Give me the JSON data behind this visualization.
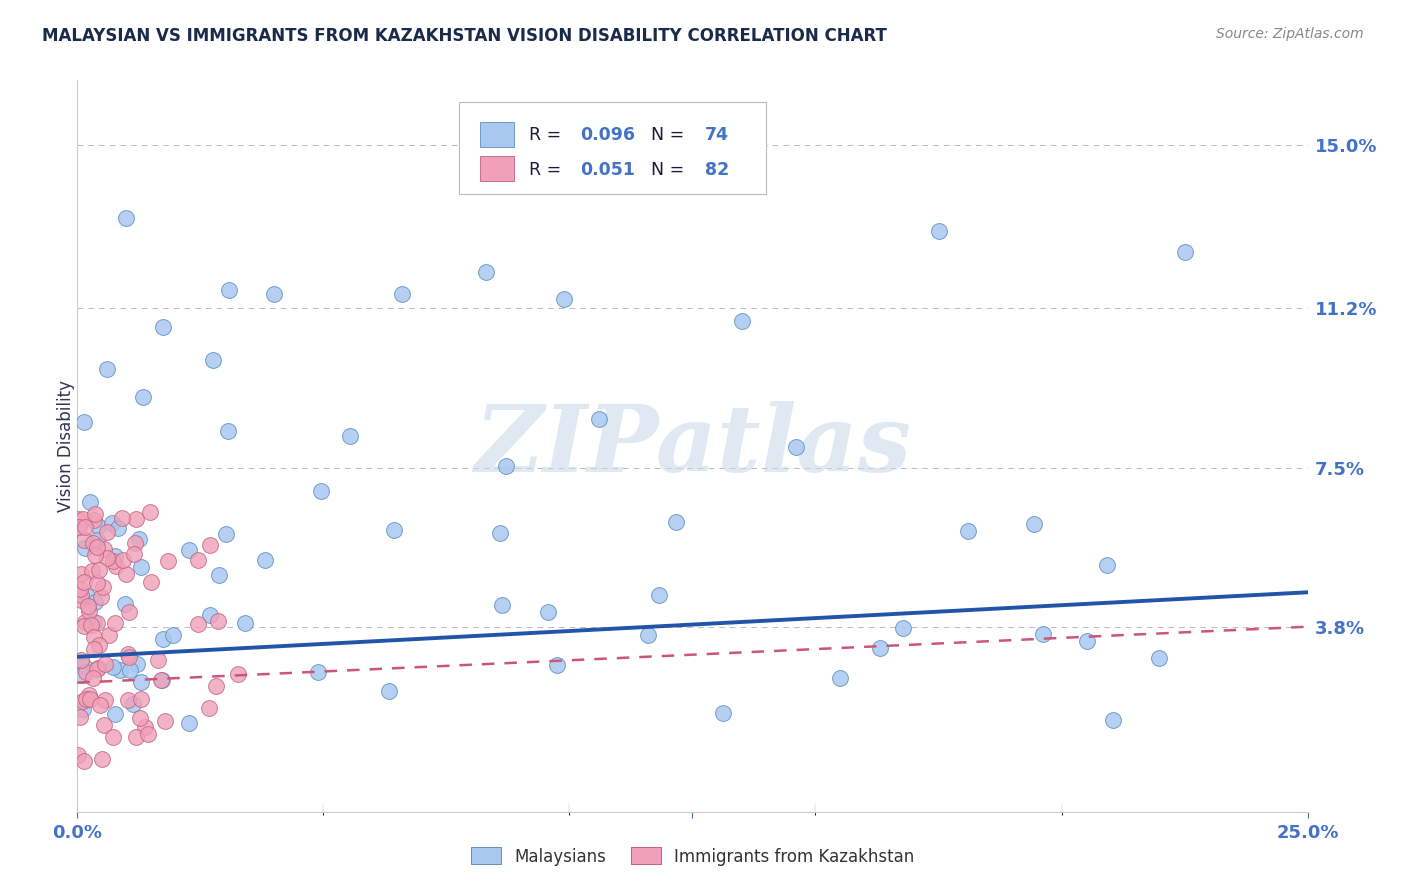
{
  "title": "MALAYSIAN VS IMMIGRANTS FROM KAZAKHSTAN VISION DISABILITY CORRELATION CHART",
  "source": "Source: ZipAtlas.com",
  "ylabel": "Vision Disability",
  "xlim": [
    0.0,
    0.25
  ],
  "ylim": [
    -0.005,
    0.165
  ],
  "ytick_labels_right": [
    "3.8%",
    "7.5%",
    "11.2%",
    "15.0%"
  ],
  "ytick_positions_right": [
    0.038,
    0.075,
    0.112,
    0.15
  ],
  "grid_color": "#bbbbbb",
  "background_color": "#ffffff",
  "malaysians_color": "#A8C8F0",
  "immigrants_color": "#F0A0B8",
  "malaysians_edge": "#6090C0",
  "immigrants_edge": "#C06080",
  "trend_blue_color": "#2255AA",
  "trend_pink_color": "#CC5577",
  "right_axis_color": "#4472C4",
  "title_fontsize": 12,
  "marker_size": 130,
  "malaysians_R": "0.096",
  "malaysians_N": "74",
  "immigrants_R": "0.051",
  "immigrants_N": "82",
  "blue_trend_start": 0.031,
  "blue_trend_end": 0.046,
  "pink_trend_start": 0.025,
  "pink_trend_end": 0.038,
  "watermark": "ZIPatlas"
}
